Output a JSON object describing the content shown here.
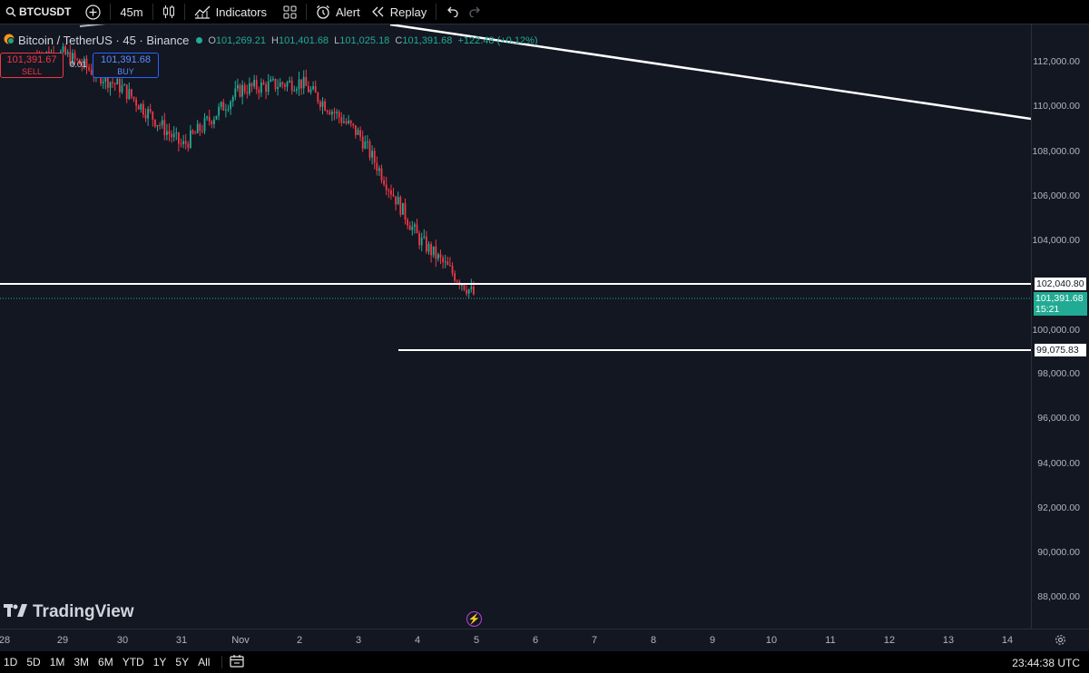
{
  "toolbar": {
    "symbol": "BTCUSDT",
    "interval": "45m",
    "indicators_label": "Indicators",
    "alert_label": "Alert",
    "replay_label": "Replay"
  },
  "legend": {
    "name": "Bitcoin / TetherUS · 45 · Binance",
    "open_key": "O",
    "open": "101,269.21",
    "high_key": "H",
    "high": "101,401.68",
    "low_key": "L",
    "low": "101,025.18",
    "close_key": "C",
    "close": "101,391.68",
    "change": "+122.48 (+0.12%)"
  },
  "trade": {
    "sell_price": "101,391.67",
    "sell_label": "SELL",
    "spread": "0.01",
    "buy_price": "101,391.68",
    "buy_label": "BUY"
  },
  "watermark": "TradingView",
  "price_axis": {
    "ticks": [
      "112,000.00",
      "110,000.00",
      "108,000.00",
      "106,000.00",
      "104,000.00",
      "100,000.00",
      "98,000.00",
      "96,000.00",
      "94,000.00",
      "92,000.00",
      "90,000.00",
      "88,000.00"
    ],
    "level_upper": "102,040.80",
    "level_lower": "99,075.83",
    "current_price": "101,391.68",
    "countdown": "15:21"
  },
  "time_axis": {
    "ticks": [
      "28",
      "29",
      "30",
      "31",
      "Nov",
      "2",
      "3",
      "4",
      "5",
      "6",
      "7",
      "8",
      "9",
      "10",
      "11",
      "12",
      "13",
      "14"
    ]
  },
  "bottom_bar": {
    "ranges": [
      "1D",
      "5D",
      "1M",
      "3M",
      "6M",
      "YTD",
      "1Y",
      "5Y",
      "All"
    ],
    "clock": "23:44:38 UTC"
  },
  "chart_data": {
    "type": "candlestick",
    "title": "Bitcoin / TetherUS · 45 · Binance",
    "x_ticks": [
      "28",
      "29",
      "30",
      "31",
      "Nov",
      "2",
      "3",
      "4",
      "5",
      "6",
      "7",
      "8",
      "9",
      "10",
      "11",
      "12",
      "13",
      "14"
    ],
    "ylim": [
      87000,
      113300
    ],
    "trend_approx": {
      "x": [
        "29",
        "30",
        "31",
        "Nov",
        "2",
        "3",
        "4",
        "5"
      ],
      "close": [
        112000,
        110500,
        108000,
        110500,
        110800,
        108500,
        104000,
        101391.68
      ]
    },
    "horizontal_lines": [
      102040.8,
      99075.83
    ],
    "current_price": 101391.68,
    "colors": {
      "up": "#22ab94",
      "down": "#f23645",
      "background": "#131722",
      "lines": "#ffffff"
    }
  }
}
